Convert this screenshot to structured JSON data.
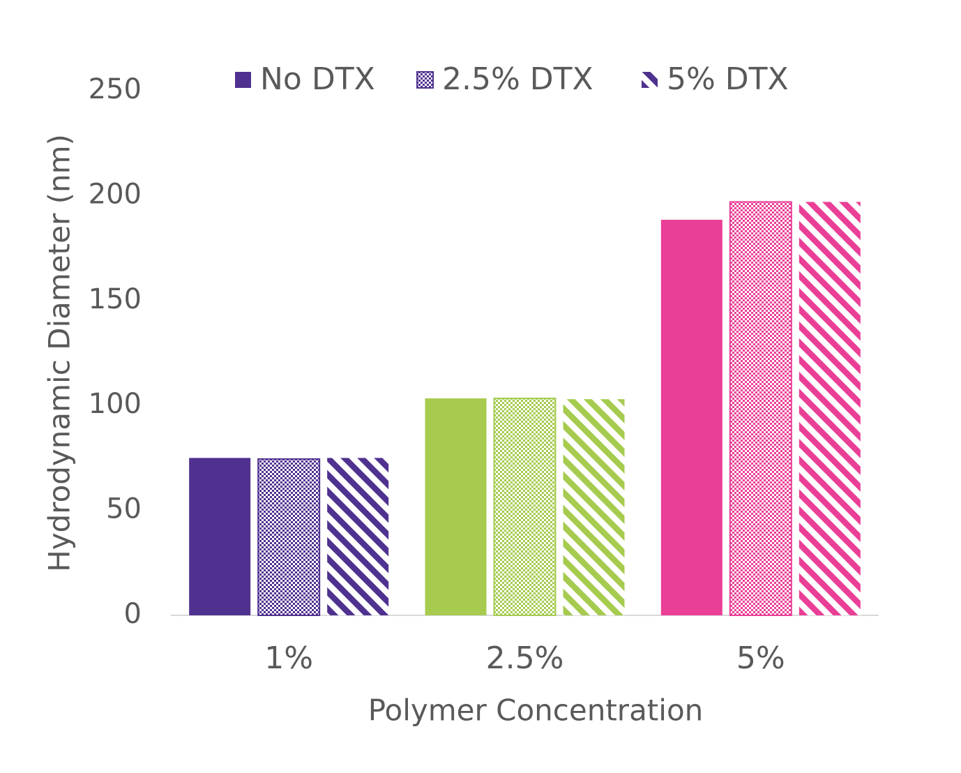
{
  "chart_data": {
    "type": "bar",
    "x_label": "Polymer Concentration",
    "y_label": "Hydrodynamic Diameter (nm)",
    "categories": [
      "1%",
      "2.5%",
      "5%"
    ],
    "category_colors": [
      "#4f318f",
      "#a6cb4f",
      "#ea3f96"
    ],
    "series": [
      {
        "name": "No DTX",
        "color": "#4f318f",
        "pattern": "solid",
        "values": [
          75,
          103.4,
          188.5
        ]
      },
      {
        "name": "2.5% DTX",
        "color": "#4f318f",
        "pattern": "checker",
        "values": [
          74.5,
          103.4,
          197
        ]
      },
      {
        "name": "5% DTX",
        "color": "#4f318f",
        "pattern": "diagonal",
        "values": [
          75,
          103,
          197
        ]
      }
    ],
    "ylim": [
      0,
      250
    ],
    "yticks": [
      0,
      50,
      100,
      150,
      200,
      250
    ],
    "grid": false,
    "legend": "top"
  }
}
